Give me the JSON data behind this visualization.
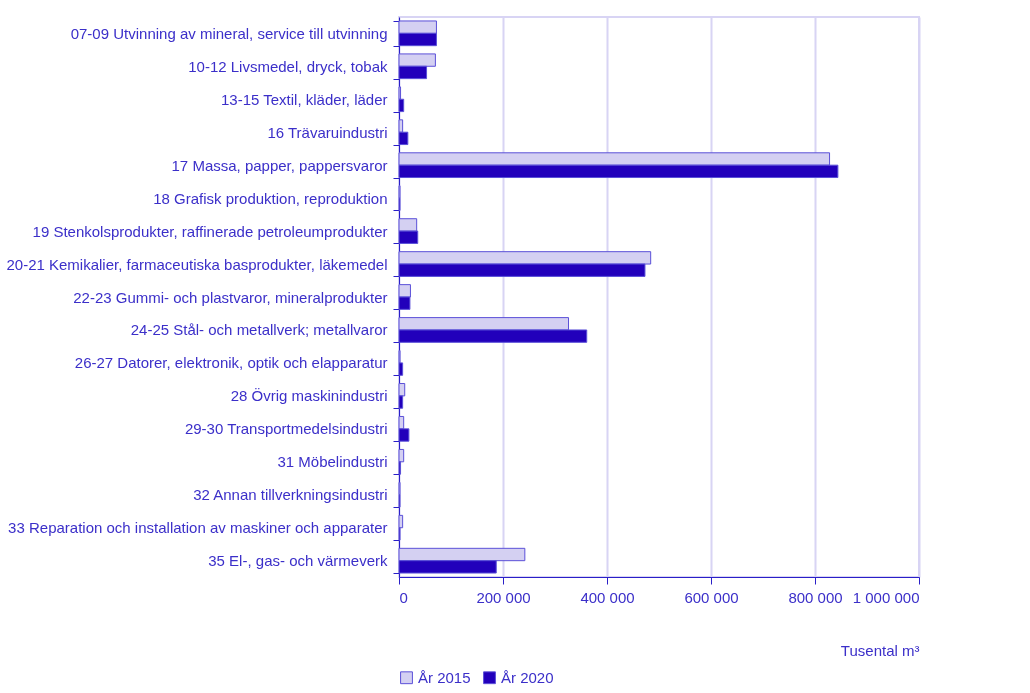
{
  "chart_data": {
    "type": "bar",
    "orientation": "horizontal",
    "xlabel": "Tusental m³",
    "categories": [
      "07-09 Utvinning av mineral, service till utvinning",
      "10-12 Livsmedel, dryck, tobak",
      "13-15 Textil, kläder, läder",
      "16 Trävaruindustri",
      "17 Massa, papper, pappersvaror",
      "18 Grafisk produktion, reproduktion",
      "19 Stenkolsprodukter, raffinerade petroleumprodukter",
      "20-21 Kemikalier, farmaceutiska basprodukter, läkemedel",
      "22-23 Gummi- och plastvaror, mineralprodukter",
      "24-25 Stål- och metallverk; metallvaror",
      "26-27 Datorer, elektronik, optik och elapparatur",
      "28 Övrig maskinindustri",
      "29-30 Transportmedelsindustri",
      "31 Möbelindustri",
      "32 Annan tillverkningsindustri",
      "33 Reparation och installation av maskiner och apparater",
      "35 El-, gas- och värmeverk"
    ],
    "series": [
      {
        "name": "År 2015",
        "color": "#d4d0f2",
        "values": [
          72000,
          70000,
          3000,
          7000,
          828000,
          2000,
          34000,
          484000,
          22000,
          326000,
          2000,
          11000,
          9000,
          9000,
          2000,
          7000,
          242000
        ]
      },
      {
        "name": "År 2020",
        "color": "#2200bb",
        "values": [
          72000,
          53000,
          9000,
          17000,
          844000,
          2000,
          36000,
          473000,
          21000,
          361000,
          7000,
          7000,
          19000,
          3000,
          2000,
          2000,
          187000
        ]
      }
    ],
    "xlim": [
      0,
      1000000
    ],
    "xticks": [
      0,
      {
        "value": 200000,
        "label": "200 000"
      },
      {
        "value": 400000,
        "label": "400 000"
      },
      {
        "value": 600000,
        "label": "600 000"
      },
      {
        "value": 800000,
        "label": "800 000"
      },
      {
        "value": 1000000,
        "label": "1 000 000"
      }
    ],
    "grid": "x",
    "legend": "bottom left"
  }
}
